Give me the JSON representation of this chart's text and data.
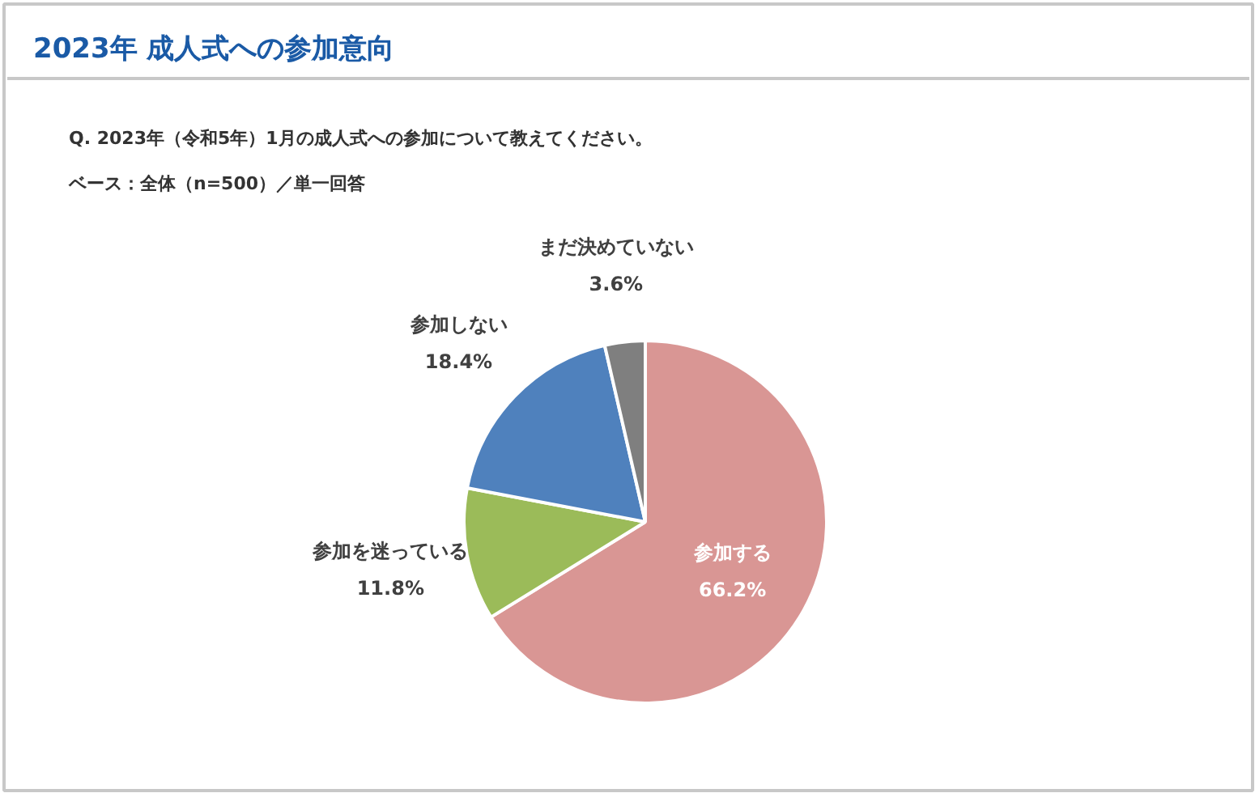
{
  "chart_data": {
    "type": "pie",
    "title": "2023年 成人式への参加意向",
    "annotations": [
      "Q. 2023年（令和5年）1月の成人式への参加について教えてください。",
      "ベース：全体（n=500）／単一回答"
    ],
    "categories": [
      "参加する",
      "参加を迷っている",
      "参加しない",
      "まだ決めていない"
    ],
    "values": [
      66.2,
      11.8,
      18.4,
      3.6
    ],
    "colors": [
      "#d99694",
      "#9bbb59",
      "#4f81bd",
      "#7f7f7f"
    ],
    "value_labels": [
      "66.2%",
      "11.8%",
      "18.4%",
      "3.6%"
    ]
  }
}
